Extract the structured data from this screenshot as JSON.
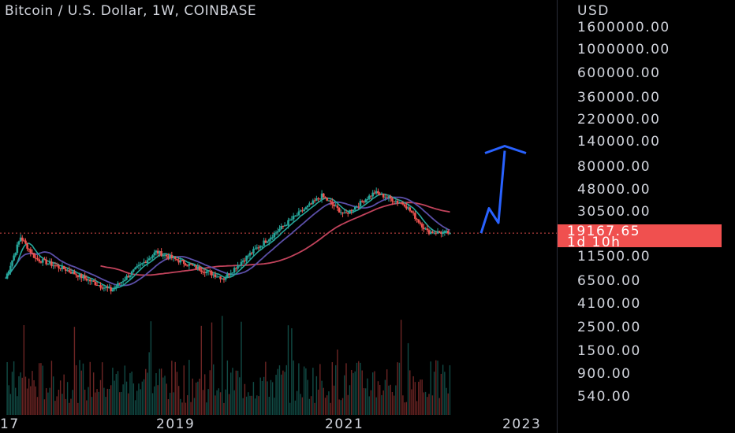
{
  "header": {
    "title": "Bitcoin / U.S. Dollar, 1W, COINBASE"
  },
  "price_axis": {
    "currency": "USD",
    "ticks": [
      "1600000.00",
      "1000000.00",
      "600000.00",
      "360000.00",
      "220000.00",
      "140000.00",
      "80000.00",
      "48000.00",
      "30500.00",
      "11500.00",
      "6500.00",
      "4100.00",
      "2500.00",
      "1500.00",
      "900.00",
      "540.00"
    ]
  },
  "last_price": {
    "value": "19167.65",
    "countdown": "1d 10h",
    "color": "#f0504f"
  },
  "time_axis": {
    "labels": [
      "17",
      "2019",
      "2021",
      "2023"
    ]
  },
  "colors": {
    "up": "#26a69a",
    "down": "#ef5350",
    "ma_fast": "#26a69a",
    "ma_mid": "#5b4fa8",
    "ma_slow": "#c2435c",
    "projection": "#2962ff"
  },
  "chart_data": {
    "type": "candlestick",
    "title": "Bitcoin / U.S. Dollar, 1W, COINBASE",
    "y_scale": "log",
    "ylim": [
      430,
      2000000
    ],
    "x": [
      "2017-10",
      "2017-12",
      "2018-02",
      "2018-06",
      "2018-12",
      "2019-06",
      "2020-03",
      "2020-06",
      "2020-12",
      "2021-04",
      "2021-07",
      "2021-11",
      "2022-03",
      "2022-06",
      "2022-09"
    ],
    "close": [
      5000,
      17000,
      9000,
      6500,
      3500,
      11000,
      5000,
      9500,
      29000,
      58000,
      33000,
      64000,
      45000,
      20000,
      19167.65
    ],
    "projection": {
      "x": [
        "2022-09",
        "2022-10",
        "2022-11",
        "2022-12"
      ],
      "y": [
        19167.65,
        40000,
        26000,
        220000
      ]
    },
    "grid": false,
    "legend": "none"
  }
}
